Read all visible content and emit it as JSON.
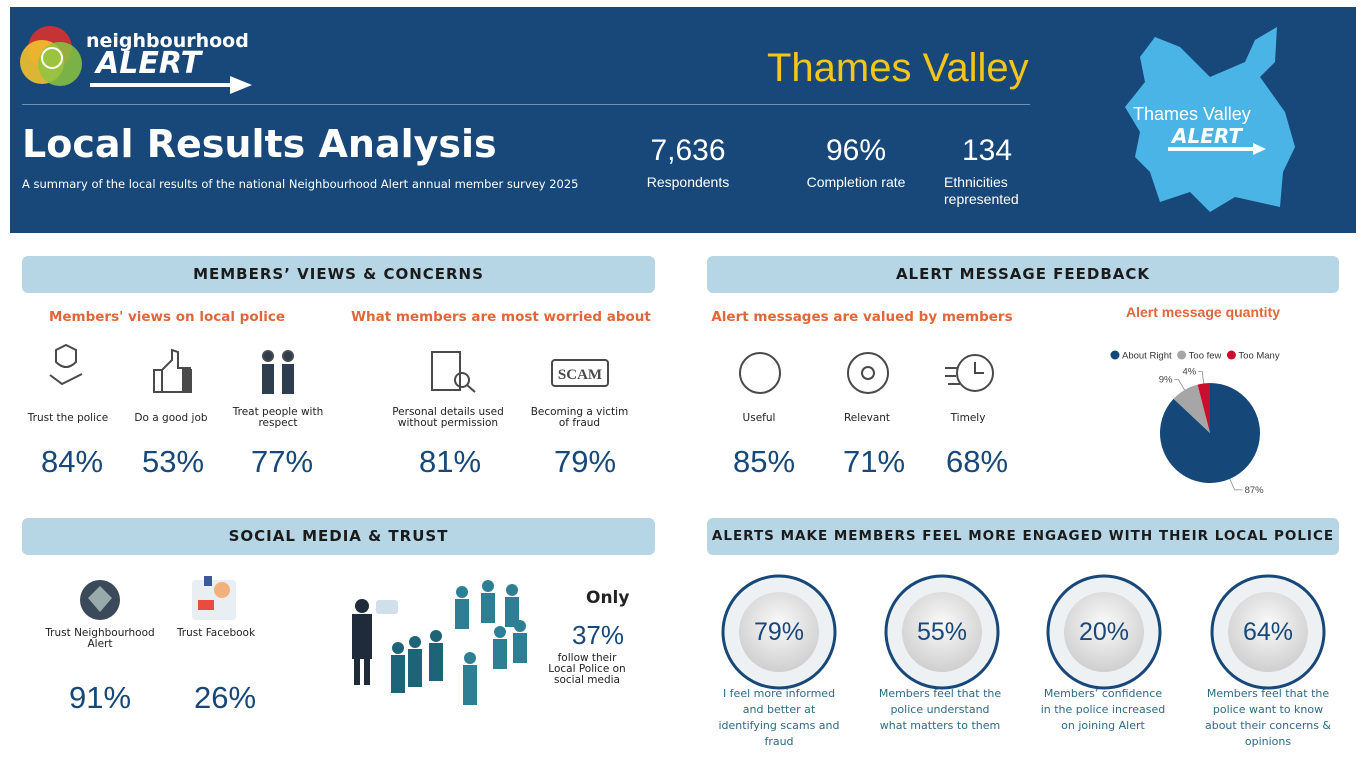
{
  "header": {
    "logo_top": "neighbourhood",
    "logo_bottom": "ALERT",
    "region": "Thames Valley",
    "title": "Local Results Analysis",
    "subtitle": "A summary of the local results of the national Neighbourhood Alert annual member survey 2025",
    "stats": [
      {
        "value": "7,636",
        "label": "Respondents"
      },
      {
        "value": "96%",
        "label": "Completion rate"
      },
      {
        "value": "134",
        "label": "Ethnicities represented"
      }
    ],
    "badge_top": "Thames Valley",
    "badge_bottom": "ALERT"
  },
  "members_views": {
    "heading": "MEMBERS’ VIEWS & CONCERNS",
    "police_title": "Members' views on local police",
    "police_items": [
      {
        "label": "Trust the police",
        "value": "84%"
      },
      {
        "label": "Do a good job",
        "value": "53%"
      },
      {
        "label": "Treat people with respect",
        "value": "77%"
      }
    ],
    "worried_title": "What members are most worried about",
    "worried_items": [
      {
        "label": "Personal details used without permission",
        "value": "81%"
      },
      {
        "label": "Becoming a victim of fraud",
        "value": "79%"
      }
    ],
    "scam_icon": "SCAM"
  },
  "alert_feedback": {
    "heading": "ALERT MESSAGE FEEDBACK",
    "valued_title": "Alert messages are valued by members",
    "valued_items": [
      {
        "label": "Useful",
        "value": "85%"
      },
      {
        "label": "Relevant",
        "value": "71%"
      },
      {
        "label": "Timely",
        "value": "68%"
      }
    ]
  },
  "chart_data": {
    "type": "pie",
    "title": "Alert message quantity",
    "categories": [
      "About Right",
      "Too few",
      "Too Many"
    ],
    "values": [
      87,
      9,
      4
    ],
    "value_labels": [
      "87%",
      "9%",
      "4%"
    ],
    "colors": [
      "#154878",
      "#a6a6a6",
      "#c8102e"
    ],
    "legend": "top"
  },
  "social_media": {
    "heading": "SOCIAL MEDIA & TRUST",
    "items": [
      {
        "label": "Trust Neighbourhood Alert",
        "value": "91%"
      },
      {
        "label": "Trust Facebook",
        "value": "26%"
      }
    ],
    "only": "Only",
    "follow_value": "37%",
    "follow_label": "follow their Local Police on social media"
  },
  "engagement": {
    "heading": "ALERTS MAKE MEMBERS FEEL MORE ENGAGED WITH THEIR LOCAL POLICE",
    "items": [
      {
        "value": "79%",
        "label": "I feel more informed and better at identifying scams and fraud"
      },
      {
        "value": "55%",
        "label": "Members feel that the police understand what matters to them"
      },
      {
        "value": "20%",
        "label": "Members’ confidence in the police increased on joining Alert"
      },
      {
        "value": "64%",
        "label": "Members feel that the police want to know about their concerns & opinions"
      }
    ]
  }
}
